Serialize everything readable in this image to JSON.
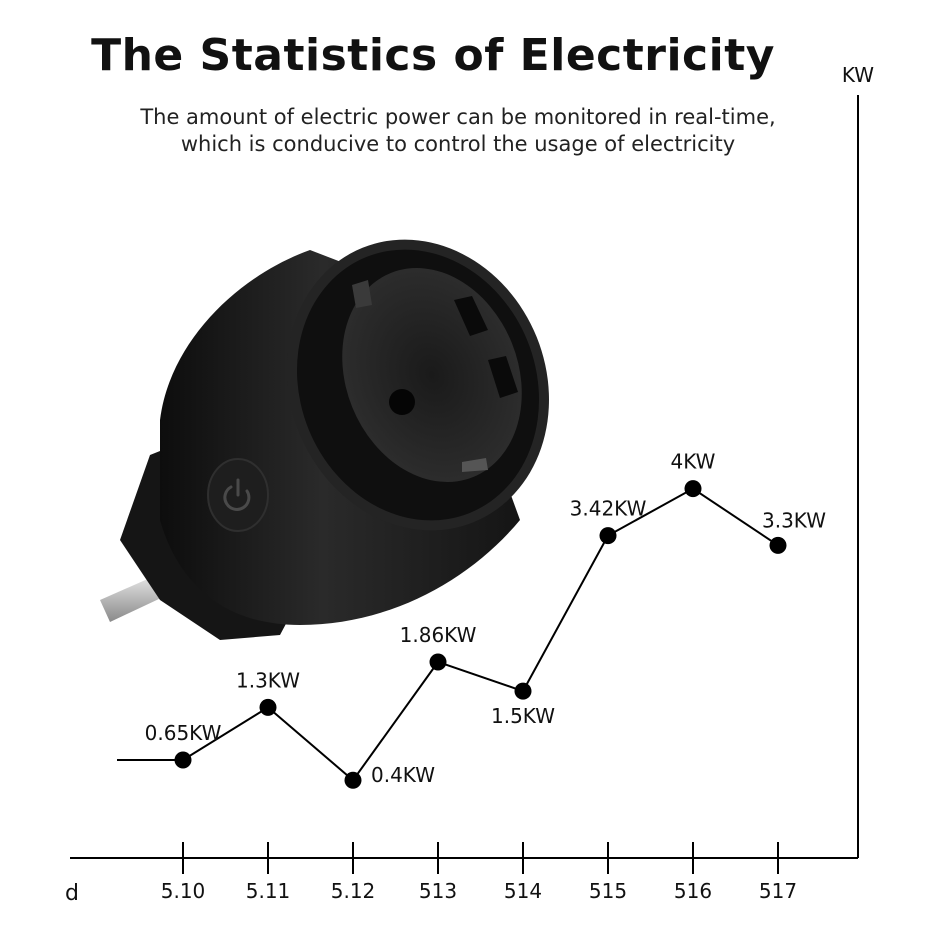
{
  "header": {
    "title": "The Statistics of Electricity",
    "subtitle_line1": "The amount of electric power can be monitored in real-time,",
    "subtitle_line2": "which is conducive to control the usage of electricity"
  },
  "product": {
    "name": "smart-plug",
    "icon": "power-icon",
    "color": "#1c1c1c"
  },
  "chart_data": {
    "type": "line",
    "xlabel": "d",
    "ylabel": "KW",
    "x": [
      "5.10",
      "5.11",
      "5.12",
      "513",
      "514",
      "515",
      "516",
      "517"
    ],
    "series": [
      {
        "values": [
          0.65,
          1.3,
          0.4,
          1.86,
          1.5,
          3.42,
          4,
          3.3
        ],
        "labels": [
          "0.65KW",
          "1.3KW",
          "0.4KW",
          "1.86KW",
          "1.5KW",
          "3.42KW",
          "4KW",
          "3.3KW"
        ]
      }
    ],
    "ylim": [
      0,
      4.5
    ],
    "grid": false,
    "legend": "none",
    "line_color": "#000000"
  }
}
